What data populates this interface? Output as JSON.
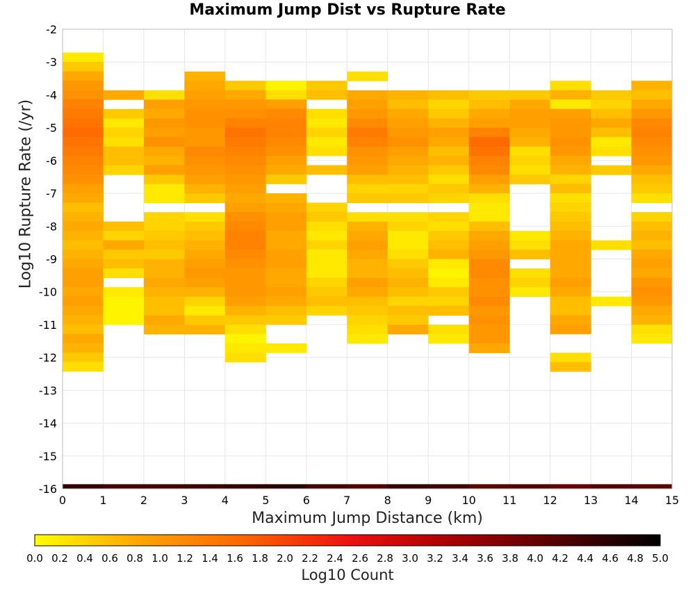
{
  "chart_data": {
    "type": "heatmap",
    "title": "Maximum Jump Dist vs Rupture Rate",
    "xlabel": "Maximum Jump Distance (km)",
    "ylabel": "Log10 Rupture Rate (/yr)",
    "colorbar_label": "Log10 Count",
    "xlim": [
      0,
      15
    ],
    "ylim": [
      -16,
      -2
    ],
    "x_ticks": [
      0,
      1,
      2,
      3,
      4,
      5,
      6,
      7,
      8,
      9,
      10,
      11,
      12,
      13,
      14,
      15
    ],
    "y_ticks": [
      -2,
      -3,
      -4,
      -5,
      -6,
      -7,
      -8,
      -9,
      -10,
      -11,
      -12,
      -13,
      -14,
      -15,
      -16
    ],
    "colorbar_ticks": [
      "0.0",
      "0.2",
      "0.4",
      "0.6",
      "0.8",
      "1.0",
      "1.2",
      "1.4",
      "1.6",
      "1.8",
      "2.0",
      "2.2",
      "2.4",
      "2.6",
      "2.8",
      "3.0",
      "3.2",
      "3.4",
      "3.6",
      "3.8",
      "4.0",
      "4.2",
      "4.4",
      "4.6",
      "4.8",
      "5.0"
    ],
    "colorbar_range": [
      0,
      5
    ],
    "colormap": [
      "#ffff00",
      "#ffa500",
      "#ff6600",
      "#ee1111",
      "#aa0000",
      "#550000",
      "#000000"
    ],
    "bin_size_y": 0.2857,
    "x_bin_centers": [
      0.5,
      1.5,
      2.5,
      3.5,
      4.5,
      5.5,
      6.5,
      7.5,
      8.5,
      9.5,
      10.5,
      11.5,
      12.5,
      13.5,
      14.5
    ],
    "columns": [
      {
        "y_top": -2.71,
        "values": [
          0.2,
          0.5,
          0.8,
          1.0,
          1.1,
          1.3,
          1.4,
          1.5,
          1.6,
          1.5,
          1.4,
          1.3,
          1.2,
          1.1,
          0.9,
          0.8,
          0.6,
          0.7,
          0.8,
          0.7,
          0.6,
          0.7,
          0.8,
          0.9,
          0.9,
          0.8,
          0.9,
          0.8,
          0.7,
          0.6,
          0.8,
          0.7,
          0.5,
          0.3
        ]
      },
      {
        "y_top": -3.86,
        "values": [
          0.8,
          null,
          0.5,
          0.2,
          0.4,
          0.3,
          0.6,
          0.6,
          0.4,
          null,
          null,
          null,
          null,
          null,
          0.6,
          0.4,
          0.8,
          0.5,
          0.6,
          0.3,
          null,
          0.2,
          0.1,
          0.1,
          0.1
        ]
      },
      {
        "y_top": -3.86,
        "values": [
          0.3,
          0.9,
          0.8,
          1.0,
          0.9,
          1.1,
          0.8,
          0.7,
          0.9,
          0.5,
          0.2,
          0.2,
          null,
          0.4,
          0.4,
          0.5,
          0.6,
          0.5,
          0.7,
          0.7,
          0.8,
          0.7,
          0.6,
          0.6,
          0.8,
          0.7
        ]
      },
      {
        "y_top": -3.29,
        "values": [
          0.7,
          0.8,
          0.9,
          1.0,
          1.1,
          1.1,
          1.0,
          1.0,
          1.2,
          1.1,
          1.0,
          0.9,
          0.7,
          0.5,
          null,
          0.3,
          0.5,
          0.6,
          0.7,
          0.8,
          0.9,
          1.0,
          0.9,
          0.7,
          0.4,
          0.2,
          0.5,
          0.7
        ]
      },
      {
        "y_top": -3.57,
        "values": [
          0.5,
          0.8,
          1.0,
          1.1,
          1.3,
          1.5,
          1.4,
          1.3,
          1.2,
          1.1,
          1.0,
          0.9,
          0.8,
          0.9,
          1.1,
          1.2,
          1.3,
          1.3,
          1.2,
          1.1,
          1.0,
          1.0,
          1.0,
          0.9,
          0.7,
          0.5,
          0.3,
          0.1,
          0.2,
          0.3
        ]
      },
      {
        "y_top": -3.57,
        "values": [
          0.1,
          0.3,
          0.9,
          1.2,
          1.3,
          1.3,
          1.2,
          1.1,
          0.9,
          0.8,
          0.5,
          null,
          0.7,
          0.8,
          0.9,
          0.9,
          0.8,
          0.8,
          0.9,
          0.9,
          0.8,
          0.8,
          0.9,
          0.8,
          0.6,
          0.5,
          null,
          null,
          0.2
        ]
      },
      {
        "y_top": -3.57,
        "values": [
          0.5,
          0.6,
          null,
          0.3,
          0.2,
          0.4,
          0.2,
          0.3,
          null,
          0.6,
          null,
          null,
          null,
          0.4,
          0.5,
          0.3,
          0.2,
          0.4,
          0.2,
          0.2,
          0.2,
          0.4,
          0.5,
          0.6,
          0.4
        ]
      },
      {
        "y_top": -3.29,
        "values": [
          0.3,
          null,
          0.8,
          0.9,
          1.0,
          1.2,
          1.4,
          1.3,
          1.1,
          1.0,
          0.9,
          0.6,
          0.4,
          0.5,
          null,
          0.3,
          0.7,
          0.8,
          0.9,
          0.8,
          0.7,
          0.7,
          0.9,
          0.8,
          0.6,
          0.5,
          0.4,
          0.3,
          0.2
        ]
      },
      {
        "y_top": -3.86,
        "values": [
          0.7,
          0.6,
          0.8,
          0.9,
          1.0,
          1.1,
          0.9,
          0.8,
          0.7,
          0.6,
          0.4,
          0.5,
          null,
          0.3,
          0.4,
          0.2,
          0.2,
          0.3,
          0.5,
          0.6,
          0.7,
          0.6,
          0.4,
          0.6,
          0.5,
          0.8
        ]
      },
      {
        "y_top": -3.86,
        "values": [
          0.6,
          0.4,
          0.5,
          0.7,
          0.9,
          0.8,
          0.6,
          0.7,
          0.5,
          0.3,
          0.5,
          0.4,
          null,
          0.4,
          0.3,
          0.5,
          0.6,
          0.7,
          0.2,
          0.1,
          0.2,
          0.5,
          0.4,
          0.6,
          null,
          0.3,
          0.2
        ]
      },
      {
        "y_top": -3.86,
        "values": [
          0.5,
          0.6,
          0.8,
          0.9,
          1.3,
          1.6,
          1.5,
          1.3,
          1.2,
          0.9,
          0.7,
          0.3,
          0.2,
          0.2,
          0.6,
          0.8,
          0.9,
          1.0,
          1.2,
          1.2,
          1.1,
          1.1,
          1.2,
          1.0,
          1.1,
          1.0,
          1.0,
          0.8
        ]
      },
      {
        "y_top": -3.86,
        "values": [
          0.5,
          0.8,
          0.9,
          0.9,
          0.8,
          0.7,
          0.3,
          0.4,
          0.3,
          0.5,
          null,
          null,
          null,
          null,
          null,
          0.2,
          0.3,
          0.6,
          null,
          0.3,
          0.4,
          0.2
        ]
      },
      {
        "y_top": -3.57,
        "values": [
          0.3,
          0.7,
          0.2,
          0.9,
          1.0,
          1.0,
          1.1,
          1.0,
          0.8,
          0.7,
          0.4,
          0.6,
          0.3,
          0.4,
          0.5,
          0.6,
          0.7,
          0.8,
          0.8,
          0.8,
          0.8,
          0.9,
          0.8,
          0.6,
          0.6,
          0.8,
          0.9,
          null,
          null,
          0.3,
          0.6
        ]
      },
      {
        "y_top": -3.86,
        "values": [
          0.5,
          0.4,
          0.6,
          0.8,
          0.6,
          0.2,
          0.3,
          null,
          0.5,
          null,
          null,
          null,
          null,
          null,
          null,
          null,
          0.3,
          null,
          null,
          null,
          null,
          null,
          0.2
        ]
      },
      {
        "y_top": -3.57,
        "values": [
          0.7,
          0.6,
          0.8,
          1.0,
          1.2,
          1.3,
          1.2,
          1.1,
          1.0,
          0.8,
          0.6,
          0.5,
          0.3,
          null,
          0.4,
          0.6,
          0.7,
          0.6,
          0.8,
          0.9,
          0.8,
          1.0,
          1.1,
          1.0,
          0.8,
          0.7,
          0.3,
          0.2
        ]
      }
    ]
  }
}
